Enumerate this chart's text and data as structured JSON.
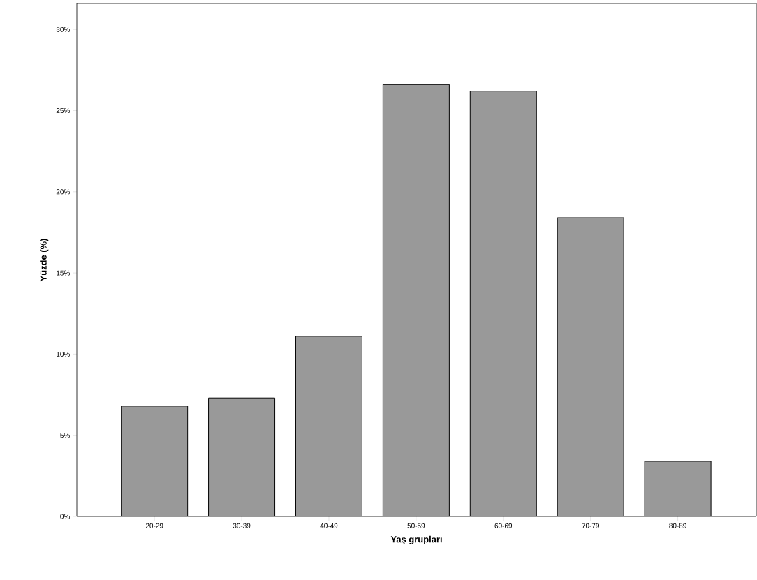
{
  "chart_data": {
    "type": "bar",
    "xlabel": "Yaş grupları",
    "ylabel": "Yüzde (%)",
    "categories": [
      "20-29",
      "30-39",
      "40-49",
      "50-59",
      "60-69",
      "70-79",
      "80-89"
    ],
    "values": [
      6.8,
      7.3,
      11.1,
      26.6,
      26.2,
      18.4,
      3.4
    ],
    "color": "#999999",
    "ylim": [
      0,
      31.6
    ],
    "yticks": [
      {
        "value": 0,
        "label": "0%"
      },
      {
        "value": 5,
        "label": "5%"
      },
      {
        "value": 10,
        "label": "10%"
      },
      {
        "value": 15,
        "label": "15%"
      },
      {
        "value": 20,
        "label": "20%"
      },
      {
        "value": 25,
        "label": "25%"
      },
      {
        "value": 30,
        "label": "30%"
      }
    ],
    "grid": false
  }
}
